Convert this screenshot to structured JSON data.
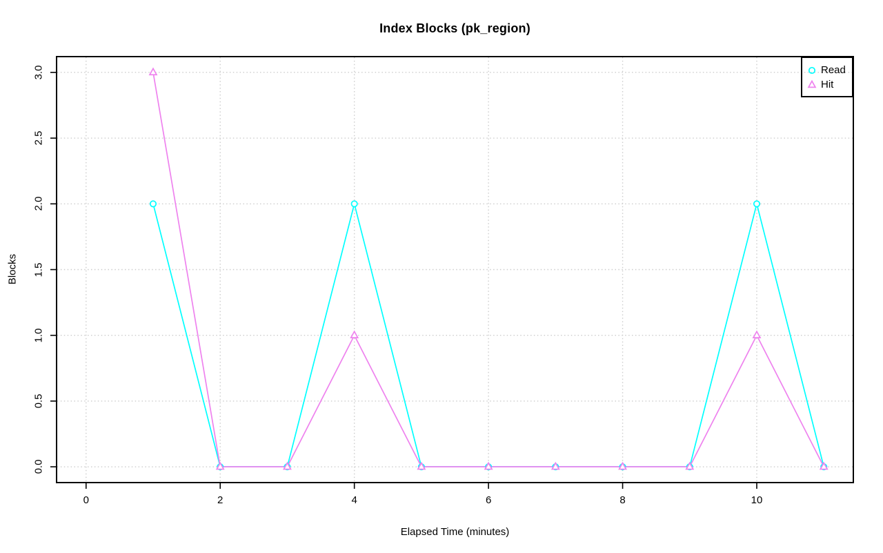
{
  "title": "Index Blocks (pk_region)",
  "chart_data": {
    "type": "line",
    "title": "Index Blocks (pk_region)",
    "xlabel": "Elapsed Time (minutes)",
    "ylabel": "Blocks",
    "x": [
      1,
      2,
      3,
      4,
      5,
      6,
      7,
      8,
      9,
      10,
      11
    ],
    "series": [
      {
        "name": "Read",
        "marker": "circle",
        "color": "#00ffff",
        "values": [
          2,
          0,
          0,
          2,
          0,
          0,
          0,
          0,
          0,
          2,
          0
        ]
      },
      {
        "name": "Hit",
        "marker": "triangle",
        "color": "#ee82ee",
        "values": [
          3,
          0,
          0,
          1,
          0,
          0,
          0,
          0,
          0,
          1,
          0
        ]
      }
    ],
    "x_ticks": [
      0,
      2,
      4,
      6,
      8,
      10
    ],
    "x_tick_labels": [
      "0",
      "2",
      "4",
      "6",
      "8",
      "10"
    ],
    "y_ticks": [
      0.0,
      0.5,
      1.0,
      1.5,
      2.0,
      2.5,
      3.0
    ],
    "y_tick_labels": [
      "0.0",
      "0.5",
      "1.0",
      "1.5",
      "2.0",
      "2.5",
      "3.0"
    ],
    "xlim": [
      -0.44,
      11.44
    ],
    "ylim": [
      -0.12,
      3.12
    ],
    "grid": true,
    "grid_style": "dotted",
    "grid_color": "#cccccc",
    "axis_color": "#000000",
    "legend_position": "topright",
    "legend_entries": [
      "Read",
      "Hit"
    ]
  }
}
